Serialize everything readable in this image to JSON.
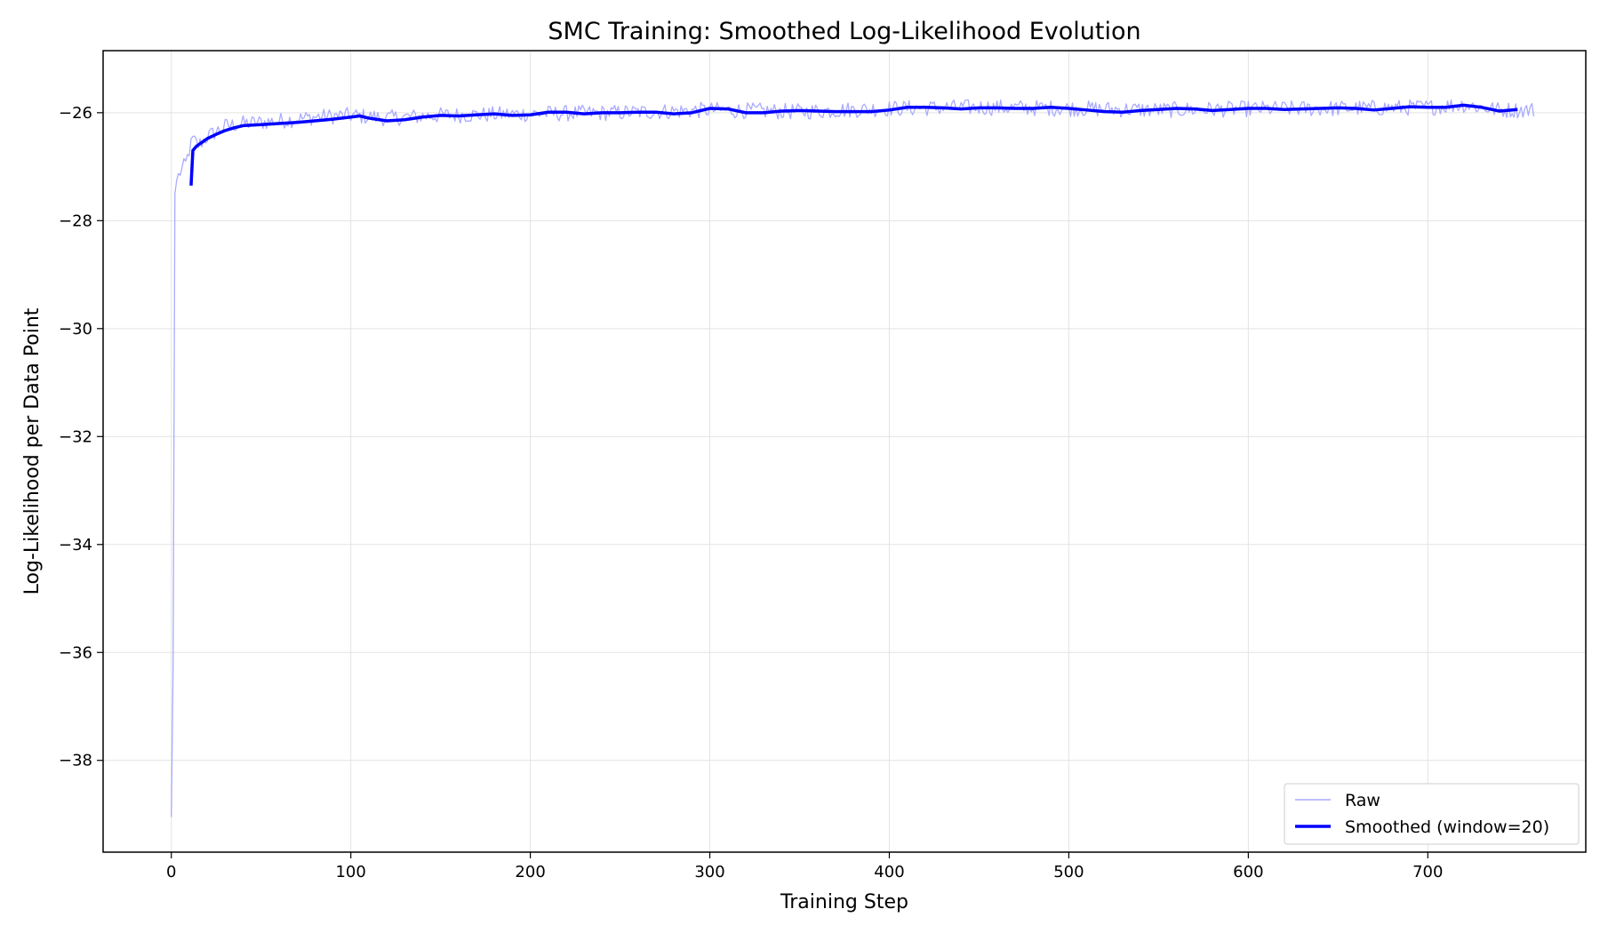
{
  "chart_data": {
    "type": "line",
    "title": "SMC Training: Smoothed Log-Likelihood Evolution",
    "xlabel": "Training Step",
    "ylabel": "Log-Likelihood per Data Point",
    "xlim": [
      -38,
      788
    ],
    "ylim": [
      -39.7,
      -24.85
    ],
    "xticks": [
      0,
      100,
      200,
      300,
      400,
      500,
      600,
      700
    ],
    "yticks": [
      -38,
      -36,
      -34,
      -32,
      -30,
      -28,
      -26
    ],
    "grid": true,
    "legend_position": "lower-right",
    "series": [
      {
        "name": "Raw",
        "color": "#aaaaff",
        "linewidth": "thin",
        "x_range": [
          0,
          759
        ],
        "key_points": [
          [
            0,
            -39.05
          ],
          [
            1,
            -36.2
          ],
          [
            2,
            -27.5
          ],
          [
            3,
            -27.25
          ],
          [
            5,
            -27.1
          ],
          [
            8,
            -26.95
          ],
          [
            10,
            -26.7
          ],
          [
            12,
            -26.5
          ],
          [
            15,
            -26.6
          ],
          [
            20,
            -26.45
          ],
          [
            25,
            -26.35
          ],
          [
            30,
            -26.25
          ],
          [
            40,
            -26.2
          ],
          [
            50,
            -26.18
          ],
          [
            60,
            -26.15
          ],
          [
            70,
            -26.12
          ],
          [
            80,
            -26.08
          ],
          [
            100,
            -26.05
          ],
          [
            120,
            -26.1
          ],
          [
            150,
            -26.05
          ],
          [
            200,
            -26.02
          ],
          [
            250,
            -26.0
          ],
          [
            300,
            -25.95
          ],
          [
            350,
            -25.98
          ],
          [
            400,
            -25.92
          ],
          [
            450,
            -25.9
          ],
          [
            500,
            -25.92
          ],
          [
            550,
            -25.95
          ],
          [
            600,
            -25.93
          ],
          [
            650,
            -25.92
          ],
          [
            700,
            -25.9
          ],
          [
            720,
            -25.85
          ],
          [
            740,
            -25.95
          ],
          [
            759,
            -25.95
          ]
        ],
        "noise_amplitude": 0.15
      },
      {
        "name": "Smoothed (window=20)",
        "color": "#0000ff",
        "linewidth": "thick",
        "x": [
          11,
          12,
          14,
          17,
          20,
          25,
          30,
          35,
          40,
          50,
          60,
          70,
          80,
          90,
          100,
          105,
          110,
          120,
          130,
          140,
          150,
          160,
          170,
          180,
          190,
          200,
          210,
          220,
          230,
          240,
          250,
          260,
          270,
          280,
          290,
          300,
          310,
          320,
          330,
          340,
          350,
          360,
          370,
          380,
          390,
          400,
          410,
          420,
          430,
          440,
          450,
          460,
          470,
          480,
          490,
          500,
          510,
          520,
          530,
          540,
          550,
          560,
          570,
          580,
          590,
          600,
          610,
          620,
          630,
          640,
          650,
          660,
          670,
          680,
          690,
          700,
          710,
          720,
          730,
          740,
          750
        ],
        "y": [
          -27.35,
          -26.7,
          -26.62,
          -26.55,
          -26.48,
          -26.4,
          -26.33,
          -26.28,
          -26.24,
          -26.22,
          -26.2,
          -26.18,
          -26.15,
          -26.12,
          -26.08,
          -26.06,
          -26.1,
          -26.15,
          -26.13,
          -26.08,
          -26.05,
          -26.06,
          -26.04,
          -26.02,
          -26.05,
          -26.04,
          -25.99,
          -25.99,
          -26.02,
          -26.0,
          -26.0,
          -25.99,
          -25.99,
          -26.02,
          -26.0,
          -25.92,
          -25.93,
          -26.0,
          -26.0,
          -25.97,
          -25.96,
          -25.97,
          -25.98,
          -25.98,
          -25.98,
          -25.95,
          -25.9,
          -25.9,
          -25.91,
          -25.93,
          -25.91,
          -25.91,
          -25.92,
          -25.92,
          -25.9,
          -25.92,
          -25.95,
          -25.98,
          -25.99,
          -25.96,
          -25.94,
          -25.92,
          -25.93,
          -25.96,
          -25.94,
          -25.92,
          -25.92,
          -25.94,
          -25.93,
          -25.92,
          -25.91,
          -25.92,
          -25.95,
          -25.92,
          -25.89,
          -25.9,
          -25.9,
          -25.86,
          -25.9,
          -25.97,
          -25.94
        ]
      }
    ]
  }
}
